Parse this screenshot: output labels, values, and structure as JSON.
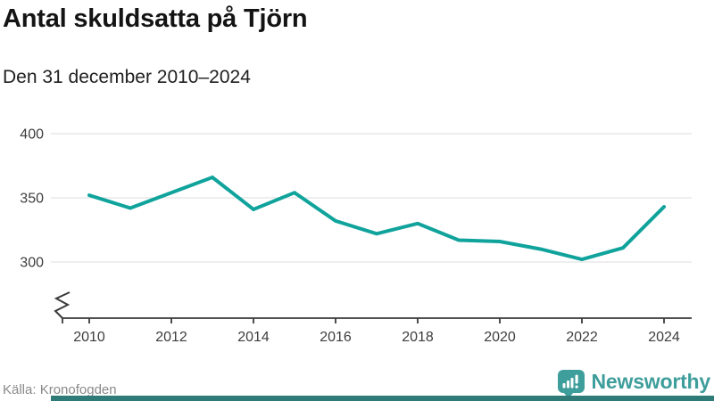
{
  "header": {
    "title": "Antal skuldsatta på Tjörn",
    "subtitle": "Den 31 december 2010–2024"
  },
  "chart_data": {
    "type": "line",
    "title": "Antal skuldsatta på Tjörn",
    "subtitle": "Den 31 december 2010–2024",
    "x": [
      2010,
      2011,
      2012,
      2013,
      2014,
      2015,
      2016,
      2017,
      2018,
      2019,
      2020,
      2021,
      2022,
      2023,
      2024
    ],
    "values": [
      352,
      342,
      354,
      366,
      341,
      354,
      332,
      322,
      330,
      317,
      316,
      310,
      302,
      311,
      343
    ],
    "xticks": [
      2010,
      2012,
      2014,
      2016,
      2018,
      2020,
      2022,
      2024
    ],
    "yticks": [
      300,
      350,
      400
    ],
    "ylim": [
      300,
      400
    ],
    "axis_break": true,
    "grid": true,
    "legend": "none",
    "line_color": "#10A39C"
  },
  "footer": {
    "source_label": "Källa: Kronofogden",
    "brand_name": "Newsworthy"
  },
  "colors": {
    "line": "#10A39C",
    "brand_teal": "#3E9E9B",
    "bottom_bar": "#2E7B77",
    "grid": "#E3E3E3",
    "axis": "#3A3A3A",
    "tick_text": "#3D3D3D",
    "muted_text": "#8A8A8A",
    "title_text": "#141414"
  }
}
